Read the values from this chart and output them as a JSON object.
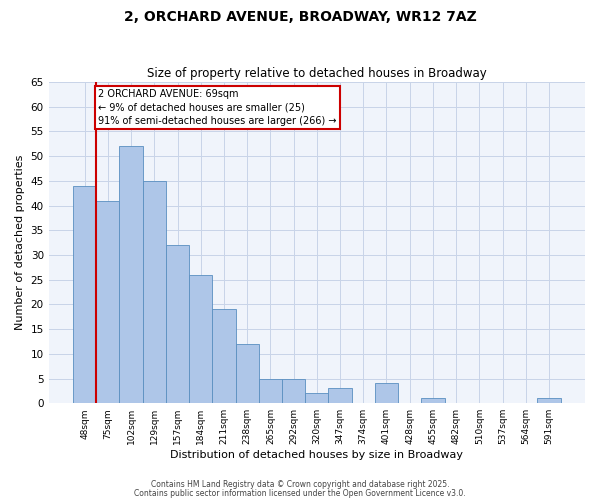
{
  "title": "2, ORCHARD AVENUE, BROADWAY, WR12 7AZ",
  "subtitle": "Size of property relative to detached houses in Broadway",
  "xlabel": "Distribution of detached houses by size in Broadway",
  "ylabel": "Number of detached properties",
  "bar_color": "#aec6e8",
  "bar_edge_color": "#5a8fc0",
  "bg_color": "#f0f4fb",
  "grid_color": "#c8d4e8",
  "annotation_line_color": "#cc0000",
  "annotation_box_color": "#cc0000",
  "categories": [
    "48sqm",
    "75sqm",
    "102sqm",
    "129sqm",
    "157sqm",
    "184sqm",
    "211sqm",
    "238sqm",
    "265sqm",
    "292sqm",
    "320sqm",
    "347sqm",
    "374sqm",
    "401sqm",
    "428sqm",
    "455sqm",
    "482sqm",
    "510sqm",
    "537sqm",
    "564sqm",
    "591sqm"
  ],
  "values": [
    44,
    41,
    52,
    45,
    32,
    26,
    19,
    12,
    5,
    5,
    2,
    3,
    0,
    4,
    0,
    1,
    0,
    0,
    0,
    0,
    1
  ],
  "ylim": [
    0,
    65
  ],
  "yticks": [
    0,
    5,
    10,
    15,
    20,
    25,
    30,
    35,
    40,
    45,
    50,
    55,
    60,
    65
  ],
  "annotation_text": "2 ORCHARD AVENUE: 69sqm\n← 9% of detached houses are smaller (25)\n91% of semi-detached houses are larger (266) →",
  "footer1": "Contains HM Land Registry data © Crown copyright and database right 2025.",
  "footer2": "Contains public sector information licensed under the Open Government Licence v3.0."
}
